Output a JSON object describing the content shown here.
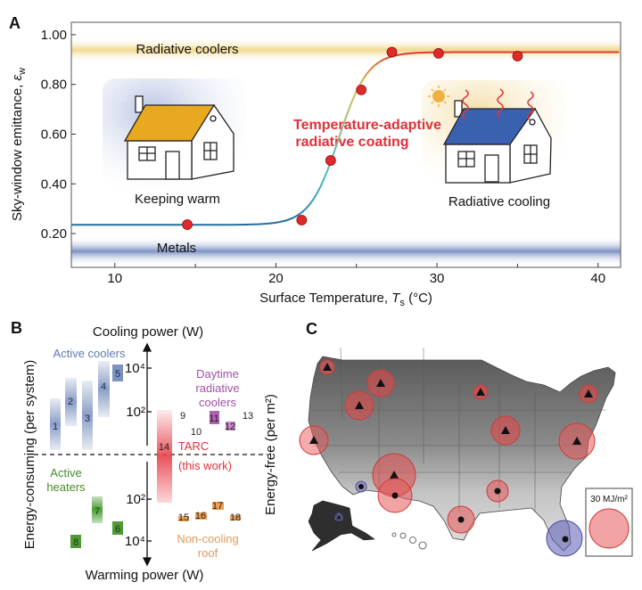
{
  "panel_labels": {
    "a": "A",
    "b": "B",
    "c": "C"
  },
  "chart_data": {
    "type": "scatter",
    "title": "",
    "xlabel": "Surface Temperature, T_s (°C)",
    "xlabel_parts": {
      "main": "Surface Temperature, ",
      "var": "T",
      "sub": "s",
      "unit": " (°C)"
    },
    "ylabel": "Sky-window emittance, ε_w",
    "ylabel_parts": {
      "main": "Sky-window emittance, ",
      "var": "ε",
      "sub": "w"
    },
    "xlim": [
      7.3,
      41.4
    ],
    "ylim": [
      0.064,
      1.05
    ],
    "xticks": [
      10,
      20,
      30,
      40
    ],
    "xtick_labels": [
      "10",
      "20",
      "30",
      "40"
    ],
    "yticks": [
      1.0,
      0.8,
      0.6,
      0.4,
      0.2
    ],
    "ytick_labels": [
      "1.00",
      "0.80",
      "0.60",
      "0.40",
      "0.20"
    ],
    "series": [
      {
        "name": "Temperature-adaptive radiative coating (measured)",
        "x": [
          14.5,
          21.6,
          23.4,
          25.3,
          27.2,
          30.1,
          35.0
        ],
        "y": [
          0.236,
          0.254,
          0.494,
          0.778,
          0.93,
          0.925,
          0.914
        ]
      },
      {
        "name": "Temperature-adaptive radiative coating (fit)",
        "type": "line",
        "low": 0.235,
        "high": 0.93,
        "transition_center": 23.9,
        "transition_width": 0.9
      }
    ],
    "bands": [
      {
        "label": "Radiative coolers",
        "range": [
          0.9,
          0.98
        ],
        "color": "#f3dc9c"
      },
      {
        "label": "Metals",
        "range": [
          0.08,
          0.17
        ],
        "color": "#8d9fcb"
      }
    ],
    "annotations": {
      "coating_line1": "Temperature-adaptive",
      "coating_line2": "radiative coating",
      "keeping_warm": "Keeping warm",
      "radiative_cooling": "Radiative cooling"
    },
    "colors": {
      "points": "#e02a2a",
      "annotation": "#e0303a",
      "low": "#1f6fa0",
      "high": "#e03a2a"
    }
  },
  "panel_b": {
    "top_axis": "Cooling power (W)",
    "bottom_axis": "Warming power (W)",
    "left_label": "Energy-consuming (per system)",
    "right_label": "Energy-free (per m²)",
    "ticks": {
      "up_high": "10⁴",
      "up_low": "10²",
      "down_low": "10²",
      "down_high": "10⁴"
    },
    "groups": {
      "active_coolers": "Active coolers",
      "active_heaters_1": "Active",
      "active_heaters_2": "heaters",
      "daytime_1": "Daytime",
      "daytime_2": "radiative",
      "daytime_3": "coolers",
      "tarc_1": "TARC",
      "tarc_2": "(this work)",
      "noncool_1": "Non-cooling",
      "noncool_2": "roof"
    },
    "items": [
      "1",
      "2",
      "3",
      "4",
      "5",
      "6",
      "7",
      "8",
      "9",
      "10",
      "11",
      "12",
      "13",
      "14",
      "15",
      "16",
      "17",
      "18"
    ],
    "colors": {
      "coolers": "#5a78ae",
      "heaters": "#3f8a2a",
      "daytime": "#a04aa0",
      "tarc": "#e0303a",
      "roof": "#e08a3a"
    }
  },
  "panel_c": {
    "legend_label": "30 MJ/m²",
    "colors": {
      "saving": "#e8585a",
      "penalty": "#5a5ab4"
    }
  }
}
